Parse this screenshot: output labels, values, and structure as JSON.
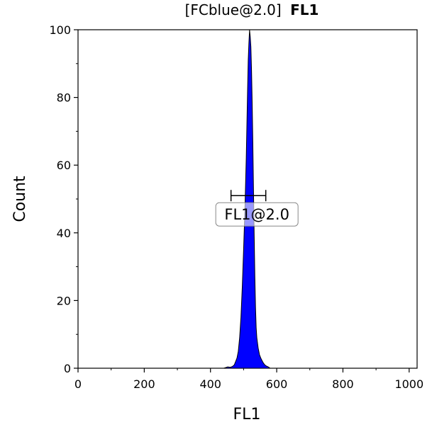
{
  "chart_data": {
    "type": "area",
    "title_prefix": "[FCblue@2.0]",
    "title_main": "FL1",
    "xlabel": "FL1",
    "ylabel": "Count",
    "xlim": [
      0,
      1024
    ],
    "ylim": [
      0,
      100
    ],
    "x_ticks": [
      0,
      200,
      400,
      600,
      800,
      1000
    ],
    "x_tick_labels": [
      "0",
      "200",
      "400",
      "600",
      "800",
      "1000"
    ],
    "y_ticks": [
      0,
      20,
      40,
      60,
      80,
      100
    ],
    "y_tick_labels": [
      "0",
      "20",
      "40",
      "60",
      "80",
      "100"
    ],
    "grid": false,
    "fill_color": "#0000ff",
    "series": [
      {
        "x": [
          440,
          452,
          460,
          466,
          472,
          476,
          480,
          484,
          488,
          492,
          496,
          500,
          504,
          508,
          510,
          512,
          514,
          516,
          518,
          520,
          522,
          524,
          526,
          528,
          530,
          532,
          534,
          536,
          538,
          540,
          544,
          548,
          552,
          556,
          560,
          564,
          568,
          572,
          576,
          580
        ],
        "y": [
          0,
          0.4,
          0.3,
          0.5,
          1,
          2,
          3,
          5,
          9,
          15,
          24,
          35,
          47,
          62,
          72,
          82,
          91,
          96,
          100,
          98,
          95,
          88,
          78,
          66,
          52,
          39,
          27,
          18,
          12,
          9,
          6,
          4,
          3,
          2.2,
          1.5,
          1,
          0.7,
          0.5,
          0.3,
          0
        ]
      }
    ],
    "gate": {
      "label": "FL1@2.0",
      "x_range": [
        462,
        567
      ],
      "y": 51
    }
  }
}
